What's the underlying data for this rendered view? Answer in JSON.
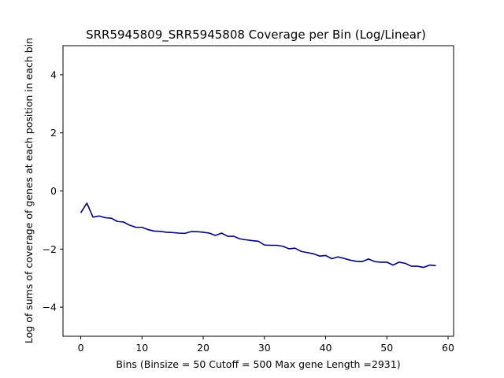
{
  "chart_data": {
    "type": "line",
    "title": "SRR5945809_SRR5945808 Coverage per Bin (Log/Linear)",
    "xlabel": "Bins  (Binsize = 50 Cutoff = 500 Max gene Length =2931)",
    "ylabel": "Log of sums of coverage of genes at each position in each bin",
    "xlim": [
      -2.9,
      60.9
    ],
    "ylim": [
      -5,
      5
    ],
    "xticks": [
      0,
      10,
      20,
      30,
      40,
      50,
      60
    ],
    "yticks": [
      -4,
      -2,
      0,
      2,
      4
    ],
    "grid": false,
    "line_color": "#000080",
    "series": [
      {
        "x": [
          0,
          1,
          2,
          3,
          4,
          5,
          6,
          7,
          8,
          9,
          10,
          11,
          12,
          13,
          14,
          15,
          16,
          17,
          18,
          19,
          20,
          21,
          22,
          23,
          24,
          25,
          26,
          27,
          28,
          29,
          30,
          31,
          32,
          33,
          34,
          35,
          36,
          37,
          38,
          39,
          40,
          41,
          42,
          43,
          44,
          45,
          46,
          47,
          48,
          49,
          50,
          51,
          52,
          53,
          54,
          55,
          56,
          57,
          58
        ],
        "values": [
          -0.75,
          -0.42,
          -0.9,
          -0.86,
          -0.92,
          -0.94,
          -1.05,
          -1.07,
          -1.18,
          -1.25,
          -1.25,
          -1.33,
          -1.38,
          -1.39,
          -1.42,
          -1.43,
          -1.45,
          -1.46,
          -1.4,
          -1.4,
          -1.42,
          -1.45,
          -1.53,
          -1.45,
          -1.56,
          -1.56,
          -1.65,
          -1.68,
          -1.71,
          -1.73,
          -1.86,
          -1.87,
          -1.87,
          -1.9,
          -1.99,
          -1.97,
          -2.08,
          -2.12,
          -2.16,
          -2.24,
          -2.22,
          -2.33,
          -2.27,
          -2.32,
          -2.38,
          -2.42,
          -2.43,
          -2.34,
          -2.43,
          -2.45,
          -2.45,
          -2.55,
          -2.45,
          -2.49,
          -2.59,
          -2.59,
          -2.63,
          -2.55,
          -2.57
        ]
      }
    ]
  }
}
